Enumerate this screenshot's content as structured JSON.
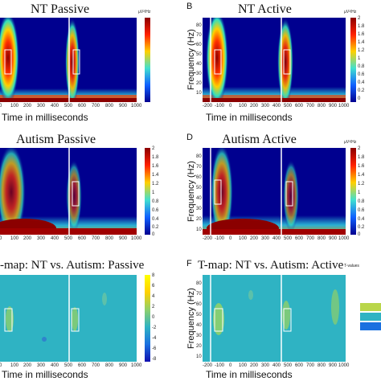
{
  "panels": {
    "a": {
      "title": "NT Passive",
      "letter": "",
      "xlabel": "Time in milliseconds",
      "ylabel": ""
    },
    "b": {
      "title": "NT Active",
      "letter": "B",
      "xlabel": "Time in milliseconds",
      "ylabel": "Frequency (Hz)"
    },
    "c": {
      "title": "Autism Passive",
      "letter": "",
      "xlabel": "",
      "ylabel": ""
    },
    "d": {
      "title": "Autism Active",
      "letter": "D",
      "xlabel": "",
      "ylabel": "Frequency (Hz)"
    },
    "e": {
      "title": "-map: NT vs. Autism: Passive",
      "letter": "",
      "xlabel": "Time in milliseconds",
      "ylabel": ""
    },
    "f": {
      "title": "T-map: NT vs. Autism: Active",
      "letter": "F",
      "xlabel": "Time in milliseconds",
      "ylabel": "Frequency (Hz)"
    }
  },
  "xticks_left": [
    "0",
    "100",
    "200",
    "300",
    "400",
    "500",
    "600",
    "700",
    "800",
    "900",
    "1000"
  ],
  "xticks_right": [
    "-200",
    "-100",
    "0",
    "100",
    "200",
    "300",
    "400",
    "500",
    "600",
    "700",
    "800",
    "900",
    "1000"
  ],
  "yticks": [
    "80",
    "70",
    "60",
    "50",
    "40",
    "30",
    "20",
    "10"
  ],
  "cbar_power": {
    "unit": "µV²/Hz",
    "ticks": [
      "2",
      "1.8",
      "1.6",
      "1.4",
      "1.2",
      "1",
      "0.8",
      "0.6",
      "0.4",
      "0.2",
      "0"
    ]
  },
  "cbar_t": {
    "unit": "T-values",
    "ticks": [
      "8",
      "6",
      "4",
      "2",
      "0",
      "-2",
      "-4",
      "-6",
      "-8"
    ]
  },
  "colors": {
    "dark_blue": "#00008f",
    "cyan": "#31b9c9",
    "teal_bg": "#2fb3c3",
    "red": "#8b0000"
  }
}
